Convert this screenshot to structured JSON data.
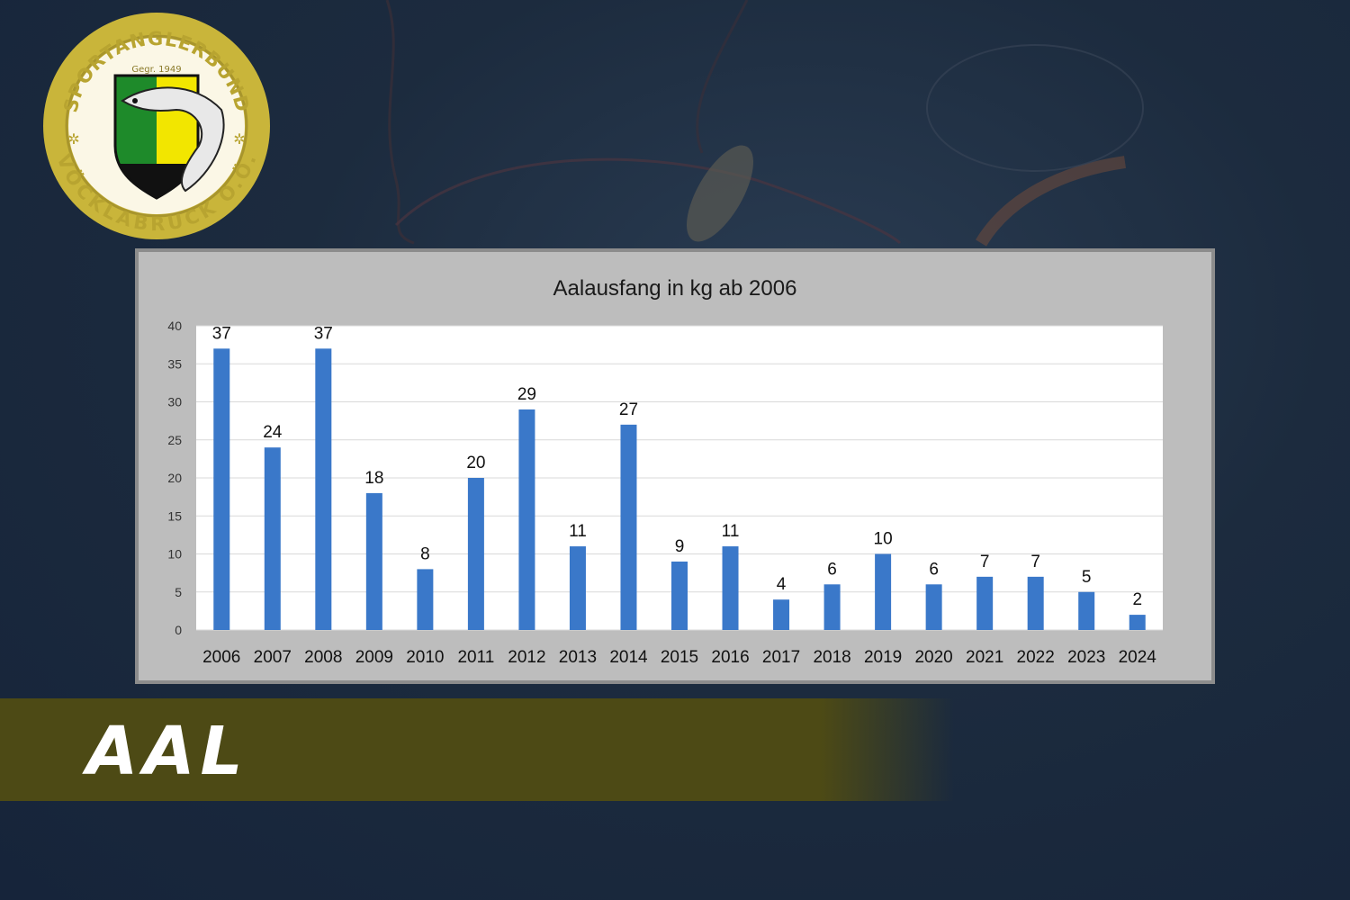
{
  "banner": {
    "title": "AAL"
  },
  "logo": {
    "text_top": "SPORTANGLERBUND",
    "text_founded": "Gegr. 1949",
    "text_bottom": "VÖCKLABRUCK O.Ö.",
    "ring_color": "#c9b53a",
    "shield_colors": [
      "#1e8a2a",
      "#f2e600",
      "#111111"
    ]
  },
  "chart_data": {
    "type": "bar",
    "title": "Aalausfang in kg ab 2006",
    "xlabel": "",
    "ylabel": "",
    "categories": [
      "2006",
      "2007",
      "2008",
      "2009",
      "2010",
      "2011",
      "2012",
      "2013",
      "2014",
      "2015",
      "2016",
      "2017",
      "2018",
      "2019",
      "2020",
      "2021",
      "2022",
      "2023",
      "2024"
    ],
    "values": [
      37,
      24,
      37,
      18,
      8,
      20,
      29,
      11,
      27,
      9,
      11,
      4,
      6,
      10,
      6,
      7,
      7,
      5,
      2
    ],
    "ylim": [
      0,
      40
    ],
    "yticks": [
      0,
      5,
      10,
      15,
      20,
      25,
      30,
      35,
      40
    ],
    "grid": true,
    "bar_color": "#3a78c9",
    "data_labels": true
  }
}
